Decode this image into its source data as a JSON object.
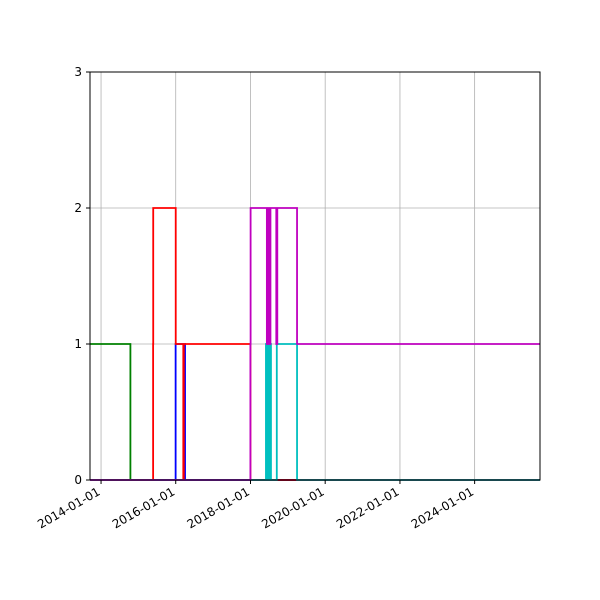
{
  "chart_data": {
    "type": "line",
    "title": "",
    "xlabel": "",
    "ylabel": "",
    "step": "post",
    "grid": true,
    "xlim": [
      "2013-09-15",
      "2025-10-01"
    ],
    "ylim": [
      0,
      3
    ],
    "x_ticks": [
      "2014-01-01",
      "2016-01-01",
      "2018-01-01",
      "2020-01-01",
      "2022-01-01",
      "2024-01-01"
    ],
    "y_ticks": [
      "0",
      "1",
      "2",
      "3"
    ],
    "series": [
      {
        "color": "#008000",
        "points": [
          [
            "2013-09-15",
            1
          ],
          [
            "2014-10-15",
            0
          ],
          [
            "2015-06-01",
            0
          ],
          [
            "2015-12-31",
            0
          ],
          [
            "2016-04-01",
            0
          ],
          [
            "2025-10-01",
            0
          ]
        ]
      },
      {
        "color": "#0000ff",
        "points": [
          [
            "2013-09-15",
            0
          ],
          [
            "2015-12-31",
            1
          ],
          [
            "2016-04-01",
            0
          ],
          [
            "2025-10-01",
            0
          ]
        ]
      },
      {
        "color": "#ff0000",
        "points": [
          [
            "2013-09-15",
            0
          ],
          [
            "2015-05-25",
            1
          ],
          [
            "2015-05-26",
            2
          ],
          [
            "2016-01-01",
            1
          ],
          [
            "2016-03-15",
            0
          ],
          [
            "2016-03-20",
            1
          ],
          [
            "2017-12-31",
            0
          ],
          [
            "2025-10-01",
            0
          ]
        ]
      },
      {
        "color": "#00bfbf",
        "points": [
          [
            "2013-09-15",
            0
          ],
          [
            "2018-06-01",
            1
          ],
          [
            "2018-06-10",
            0
          ],
          [
            "2018-06-20",
            1
          ],
          [
            "2018-07-01",
            0
          ],
          [
            "2018-07-10",
            1
          ],
          [
            "2018-07-20",
            0
          ],
          [
            "2018-09-15",
            1
          ],
          [
            "2019-04-01",
            0
          ],
          [
            "2025-10-01",
            0
          ]
        ]
      },
      {
        "color": "#bf00bf",
        "points": [
          [
            "2013-09-15",
            0
          ],
          [
            "2017-12-31",
            1
          ],
          [
            "2018-01-02",
            2
          ],
          [
            "2018-06-10",
            1
          ],
          [
            "2018-06-15",
            2
          ],
          [
            "2018-06-25",
            1
          ],
          [
            "2018-07-01",
            2
          ],
          [
            "2018-07-10",
            1
          ],
          [
            "2018-07-15",
            2
          ],
          [
            "2018-09-10",
            1
          ],
          [
            "2018-09-20",
            2
          ],
          [
            "2019-04-01",
            1
          ],
          [
            "2025-10-01",
            1
          ]
        ]
      }
    ]
  }
}
